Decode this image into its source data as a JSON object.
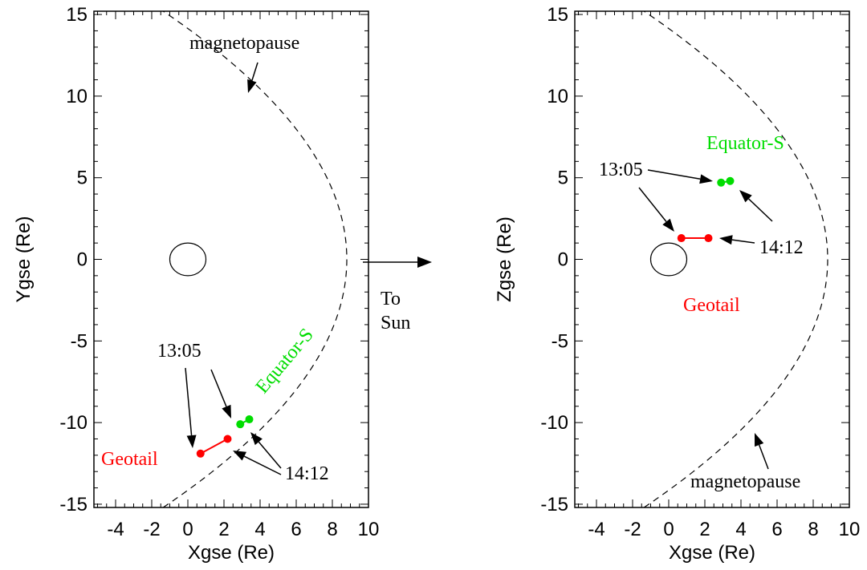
{
  "chart_data": [
    {
      "type": "scatter",
      "xlabel": "Xgse (Re)",
      "ylabel": "Ygse (Re)",
      "xlim": [
        -5.2,
        10
      ],
      "ylim": [
        -15.2,
        15.2
      ],
      "xticks": [
        "-4",
        "-2",
        "0",
        "2",
        "4",
        "6",
        "8",
        "10"
      ],
      "yticks": [
        "-15",
        "-10",
        "-5",
        "0",
        "5",
        "10",
        "15"
      ],
      "grid": false,
      "earth_radius": 1,
      "magnetopause": {
        "label": "magnetopause",
        "nose_x": 8.8,
        "flank_coeff": 0.044
      },
      "series": [
        {
          "name": "Geotail",
          "color": "#ff0000",
          "points": [
            {
              "x": 0.7,
              "y": -11.9
            },
            {
              "x": 2.2,
              "y": -11.0
            }
          ]
        },
        {
          "name": "Equator-S",
          "color": "#00dd00",
          "points": [
            {
              "x": 2.9,
              "y": -10.1
            },
            {
              "x": 3.4,
              "y": -9.8
            }
          ]
        }
      ],
      "annotations": [
        {
          "id": "magnetopause",
          "text": "magnetopause"
        },
        {
          "id": "start-time",
          "text": "13:05"
        },
        {
          "id": "end-time",
          "text": "14:12"
        }
      ]
    },
    {
      "type": "scatter",
      "xlabel": "Xgse (Re)",
      "ylabel": "Zgse (Re)",
      "xlim": [
        -5.2,
        10
      ],
      "ylim": [
        -15.2,
        15.2
      ],
      "xticks": [
        "-4",
        "-2",
        "0",
        "2",
        "4",
        "6",
        "8",
        "10"
      ],
      "yticks": [
        "-15",
        "-10",
        "-5",
        "0",
        "5",
        "10",
        "15"
      ],
      "grid": false,
      "earth_radius": 1,
      "magnetopause": {
        "label": "magnetopause",
        "nose_x": 8.8,
        "flank_coeff": 0.044
      },
      "series": [
        {
          "name": "Geotail",
          "color": "#ff0000",
          "points": [
            {
              "x": 0.7,
              "y": 1.3
            },
            {
              "x": 2.2,
              "y": 1.3
            }
          ]
        },
        {
          "name": "Equator-S",
          "color": "#00dd00",
          "points": [
            {
              "x": 2.9,
              "y": 4.7
            },
            {
              "x": 3.4,
              "y": 4.8
            }
          ]
        }
      ],
      "annotations": [
        {
          "id": "magnetopause",
          "text": "magnetopause"
        },
        {
          "id": "start-time",
          "text": "13:05"
        },
        {
          "id": "end-time",
          "text": "14:12"
        }
      ]
    }
  ],
  "sun_direction": {
    "line1": "To",
    "line2": "Sun"
  }
}
